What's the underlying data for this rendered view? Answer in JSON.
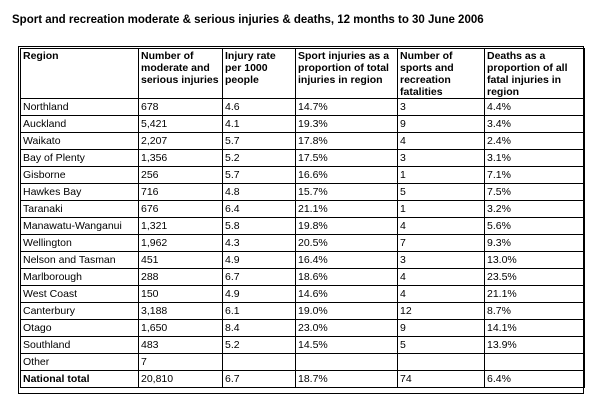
{
  "title": "Sport and recreation moderate & serious injuries & deaths, 12 months to 30 June 2006",
  "table": {
    "headers": [
      "Region",
      "Number of moderate and serious injuries",
      "Injury rate per 1000 people",
      "Sport injuries as a proportion of total injuries in region",
      "Number of sports and recreation fatalities",
      "Deaths as a proportion of all fatal injuries in region"
    ],
    "rows": [
      [
        "Northland",
        "678",
        "4.6",
        "14.7%",
        "3",
        "4.4%"
      ],
      [
        "Auckland",
        "5,421",
        "4.1",
        "19.3%",
        "9",
        "3.4%"
      ],
      [
        "Waikato",
        "2,207",
        "5.7",
        "17.8%",
        "4",
        "2.4%"
      ],
      [
        "Bay of Plenty",
        "1,356",
        "5.2",
        "17.5%",
        "3",
        "3.1%"
      ],
      [
        "Gisborne",
        "256",
        "5.7",
        "16.6%",
        "1",
        "7.1%"
      ],
      [
        "Hawkes Bay",
        "716",
        "4.8",
        "15.7%",
        "5",
        "7.5%"
      ],
      [
        "Taranaki",
        "676",
        "6.4",
        "21.1%",
        "1",
        "3.2%"
      ],
      [
        "Manawatu-Wanganui",
        "1,321",
        "5.8",
        "19.8%",
        "4",
        "5.6%"
      ],
      [
        "Wellington",
        "1,962",
        "4.3",
        "20.5%",
        "7",
        "9.3%"
      ],
      [
        "Nelson and Tasman",
        "451",
        "4.9",
        "16.4%",
        "3",
        "13.0%"
      ],
      [
        "Marlborough",
        "288",
        "6.7",
        "18.6%",
        "4",
        "23.5%"
      ],
      [
        "West Coast",
        "150",
        "4.9",
        "14.6%",
        "4",
        "21.1%"
      ],
      [
        "Canterbury",
        "3,188",
        "6.1",
        "19.0%",
        "12",
        "8.7%"
      ],
      [
        "Otago",
        "1,650",
        "8.4",
        "23.0%",
        "9",
        "14.1%"
      ],
      [
        "Southland",
        "483",
        "5.2",
        "14.5%",
        "5",
        "13.9%"
      ],
      [
        "Other",
        "7",
        "",
        "",
        "",
        ""
      ]
    ],
    "total": [
      "National total",
      "20,810",
      "6.7",
      "18.7%",
      "74",
      "6.4%"
    ]
  }
}
